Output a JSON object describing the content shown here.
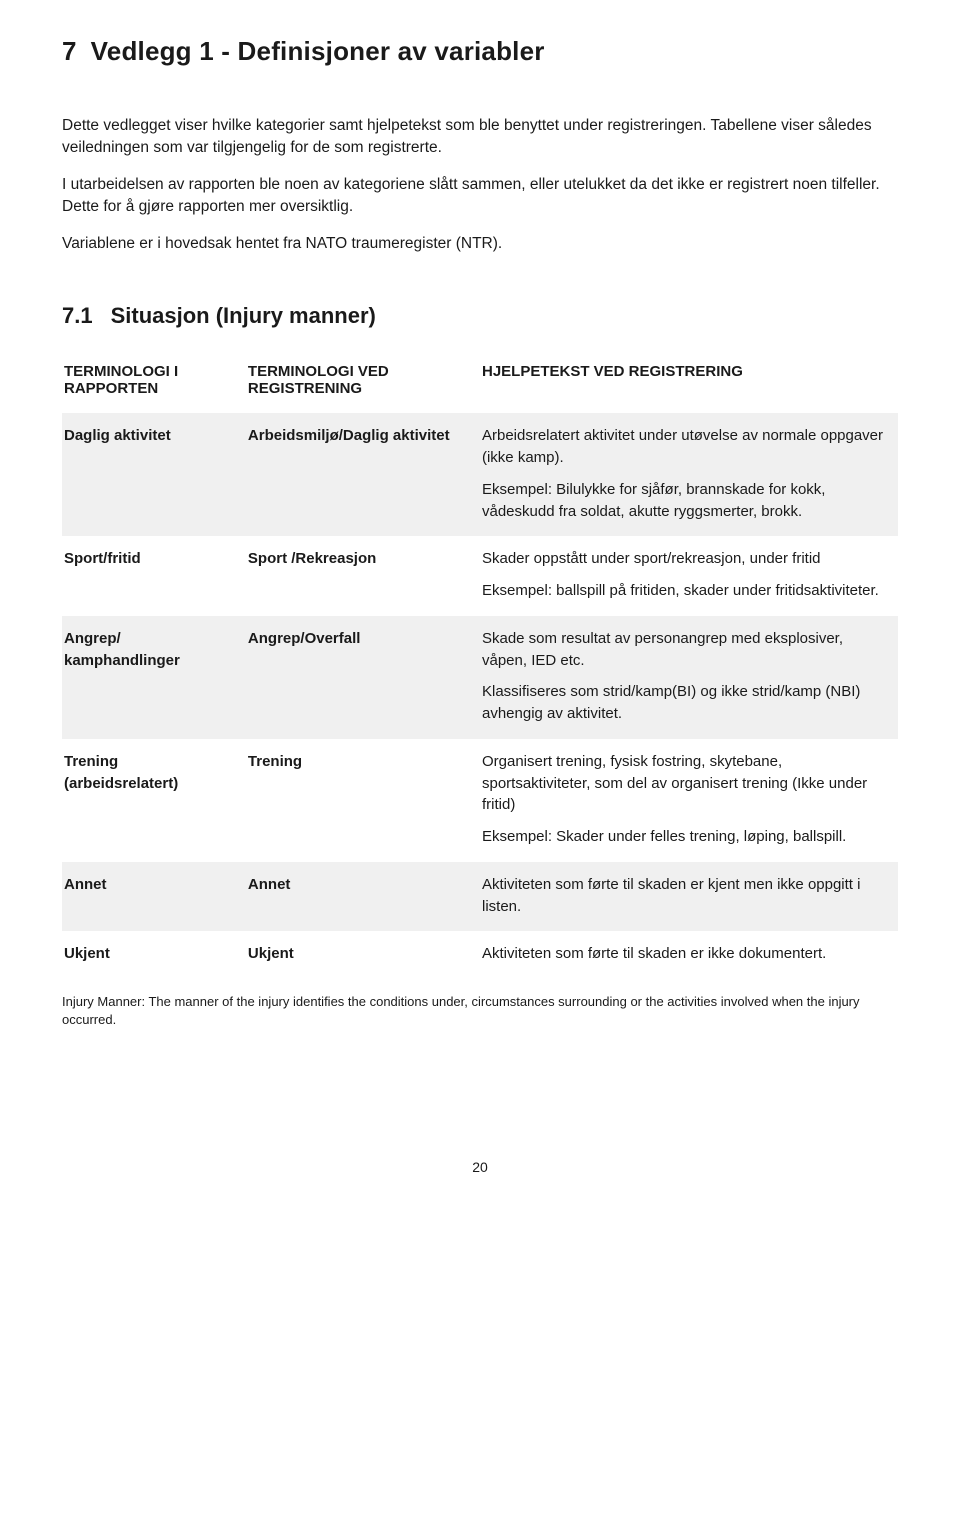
{
  "heading": {
    "number": "7",
    "title": "Vedlegg 1 - Definisjoner av variabler"
  },
  "intro_paragraphs": [
    "Dette vedlegget viser hvilke kategorier samt hjelpetekst som ble benyttet under registreringen. Tabellene viser således veiledningen som var tilgjengelig for de som registrerte.",
    "I utarbeidelsen av rapporten ble noen av kategoriene slått sammen, eller utelukket da det ikke er registrert noen tilfeller. Dette for å gjøre rapporten mer oversiktlig.",
    "Variablene er i hovedsak hentet fra NATO traumeregister (NTR)."
  ],
  "subheading": {
    "number": "7.1",
    "title": "Situasjon (Injury manner)"
  },
  "table": {
    "headers": [
      "TERMINOLOGI I RAPPORTEN",
      "TERMINOLOGI VED REGISTRENING",
      "HJELPETEKST VED REGISTRERING"
    ],
    "rows": [
      {
        "shade": true,
        "c0": "Daglig aktivitet",
        "c1": "Arbeidsmiljø/Daglig aktivitet",
        "c2": [
          "Arbeidsrelatert aktivitet under utøvelse av normale oppgaver (ikke kamp).",
          "Eksempel: Bilulykke for sjåfør, brannskade for kokk, vådeskudd fra soldat, akutte ryggsmerter, brokk."
        ]
      },
      {
        "shade": false,
        "c0": "Sport/fritid",
        "c1": "Sport /Rekreasjon",
        "c2": [
          "Skader oppstått under sport/rekreasjon, under fritid",
          "Eksempel: ballspill på fritiden, skader under fritidsaktiviteter."
        ]
      },
      {
        "shade": true,
        "c0": "Angrep/ kamphandlinger",
        "c1": "Angrep/Overfall",
        "c2": [
          "Skade som resultat av personangrep med eksplosiver, våpen, IED etc.",
          "Klassifiseres som strid/kamp(BI) og ikke strid/kamp (NBI) avhengig av aktivitet."
        ]
      },
      {
        "shade": false,
        "c0": "Trening (arbeidsrelatert)",
        "c1": "Trening",
        "c2": [
          "Organisert trening, fysisk fostring, skytebane, sportsaktiviteter, som del av organisert trening (Ikke under fritid)",
          "Eksempel: Skader under felles trening, løping, ballspill."
        ]
      },
      {
        "shade": true,
        "c0": "Annet",
        "c1": "Annet",
        "c2": [
          "Aktiviteten som førte til skaden er kjent men ikke oppgitt i listen."
        ]
      },
      {
        "shade": false,
        "c0": "Ukjent",
        "c1": "Ukjent",
        "c2": [
          "Aktiviteten som førte til skaden er ikke dokumentert."
        ]
      }
    ]
  },
  "footnote": "Injury Manner: The manner of the injury identifies the conditions under, circumstances surrounding or the activities involved when the injury occurred.",
  "page_number": "20"
}
